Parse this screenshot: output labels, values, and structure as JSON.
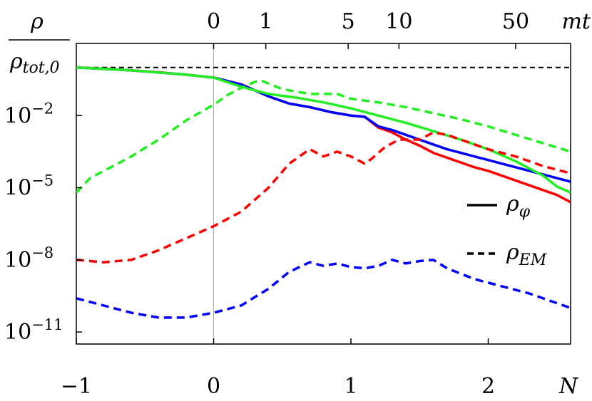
{
  "chart_data": {
    "type": "line",
    "title": "",
    "ylabel_numerator": "ρ",
    "ylabel_denominator": "ρtot,0",
    "xlabel": "N",
    "top_axis_label": "mt",
    "xlim": [
      -1,
      2.6
    ],
    "ylim_log10": [
      -11.5,
      1.0
    ],
    "y_scale": "log",
    "x_ticks": [
      {
        "value": -1,
        "label": "−1"
      },
      {
        "value": 0,
        "label": "0"
      },
      {
        "value": 1,
        "label": "1"
      },
      {
        "value": 2,
        "label": "2"
      }
    ],
    "y_ticks": [
      {
        "value_log10": -2,
        "base": "10",
        "exp": "−2"
      },
      {
        "value_log10": -5,
        "base": "10",
        "exp": "−5"
      },
      {
        "value_log10": -8,
        "base": "10",
        "exp": "−8"
      },
      {
        "value_log10": -11,
        "base": "10",
        "exp": "−11"
      }
    ],
    "top_ticks": [
      {
        "N": 0.0,
        "label": "0"
      },
      {
        "N": 0.38,
        "label": "1"
      },
      {
        "N": 0.98,
        "label": "5"
      },
      {
        "N": 1.35,
        "label": "10"
      },
      {
        "N": 2.2,
        "label": "50"
      }
    ],
    "reference_line": {
      "value_log10": 0,
      "style": "dashed",
      "color": "#000000"
    },
    "vertical_line": {
      "N": 0,
      "color": "#aaaaaa"
    },
    "legend": [
      {
        "label": "ρφ",
        "base": "ρ",
        "sub": "φ",
        "style": "solid"
      },
      {
        "label": "ρEM",
        "base": "ρ",
        "sub": "EM",
        "style": "dashed"
      }
    ],
    "legend_position": "right",
    "series": [
      {
        "color": "#ff0000",
        "style": "solid",
        "x": [
          -1.0,
          -0.8,
          -0.6,
          -0.4,
          -0.2,
          0.0,
          0.2,
          0.4,
          0.55,
          0.7,
          0.85,
          1.0,
          1.1,
          1.2,
          1.3,
          1.4,
          1.5,
          1.6,
          1.7,
          1.8,
          1.9,
          2.0,
          2.1,
          2.2,
          2.3,
          2.4,
          2.5,
          2.6
        ],
        "y_log10": [
          0.0,
          -0.05,
          -0.12,
          -0.2,
          -0.3,
          -0.42,
          -0.7,
          -1.2,
          -1.5,
          -1.65,
          -1.85,
          -2.0,
          -2.05,
          -2.5,
          -2.7,
          -3.0,
          -3.25,
          -3.55,
          -3.75,
          -3.95,
          -4.15,
          -4.3,
          -4.5,
          -4.7,
          -4.9,
          -5.1,
          -5.3,
          -5.6
        ]
      },
      {
        "color": "#0000ff",
        "style": "solid",
        "x": [
          -1.0,
          -0.6,
          -0.2,
          0.0,
          0.2,
          0.4,
          0.55,
          0.7,
          0.85,
          1.0,
          1.1,
          1.2,
          1.3,
          1.4,
          1.5,
          1.6,
          1.7,
          1.8,
          1.9,
          2.0,
          2.1,
          2.2,
          2.3,
          2.4,
          2.5,
          2.6
        ],
        "y_log10": [
          0.0,
          -0.12,
          -0.3,
          -0.42,
          -0.7,
          -1.2,
          -1.5,
          -1.65,
          -1.85,
          -2.0,
          -2.05,
          -2.45,
          -2.6,
          -2.8,
          -3.0,
          -3.2,
          -3.4,
          -3.55,
          -3.7,
          -3.85,
          -4.0,
          -4.15,
          -4.3,
          -4.45,
          -4.6,
          -4.75
        ]
      },
      {
        "color": "#22ee22",
        "style": "solid",
        "x": [
          -1.0,
          -0.6,
          -0.2,
          0.0,
          0.2,
          0.4,
          0.6,
          0.8,
          1.0,
          1.2,
          1.4,
          1.6,
          1.8,
          2.0,
          2.2,
          2.4,
          2.5,
          2.6
        ],
        "y_log10": [
          0.0,
          -0.12,
          -0.3,
          -0.42,
          -0.8,
          -1.1,
          -1.25,
          -1.45,
          -1.7,
          -2.0,
          -2.3,
          -2.65,
          -3.0,
          -3.4,
          -3.9,
          -4.5,
          -4.95,
          -5.2
        ]
      },
      {
        "color": "#ff0000",
        "style": "dashed",
        "x": [
          -1.0,
          -0.8,
          -0.6,
          -0.4,
          -0.2,
          0.0,
          0.2,
          0.4,
          0.55,
          0.7,
          0.8,
          0.9,
          1.0,
          1.1,
          1.15,
          1.25,
          1.35,
          1.5,
          1.6,
          1.7,
          1.8,
          1.9,
          2.0,
          2.2,
          2.4,
          2.6
        ],
        "y_log10": [
          -8.0,
          -8.1,
          -8.0,
          -7.6,
          -7.1,
          -6.6,
          -6.0,
          -5.0,
          -4.0,
          -3.4,
          -3.7,
          -3.5,
          -3.7,
          -4.0,
          -3.8,
          -3.3,
          -3.0,
          -3.0,
          -2.7,
          -2.8,
          -3.0,
          -3.2,
          -3.4,
          -3.7,
          -4.1,
          -4.4
        ]
      },
      {
        "color": "#0000ff",
        "style": "dashed",
        "x": [
          -1.0,
          -0.8,
          -0.6,
          -0.4,
          -0.2,
          0.0,
          0.2,
          0.4,
          0.55,
          0.7,
          0.8,
          0.9,
          1.0,
          1.1,
          1.2,
          1.3,
          1.4,
          1.5,
          1.6,
          1.7,
          1.9,
          2.1,
          2.3,
          2.45,
          2.6
        ],
        "y_log10": [
          -9.6,
          -9.9,
          -10.2,
          -10.4,
          -10.4,
          -10.2,
          -9.9,
          -9.2,
          -8.5,
          -8.1,
          -8.25,
          -8.15,
          -8.3,
          -8.35,
          -8.25,
          -8.0,
          -8.15,
          -8.05,
          -8.0,
          -8.35,
          -8.8,
          -9.1,
          -9.4,
          -9.7,
          -10.0
        ]
      },
      {
        "color": "#22ee22",
        "style": "dashed",
        "x": [
          -1.0,
          -0.9,
          -0.8,
          -0.6,
          -0.4,
          -0.2,
          0.0,
          0.1,
          0.2,
          0.3,
          0.35,
          0.5,
          0.7,
          0.9,
          1.0,
          1.2,
          1.4,
          1.6,
          1.8,
          2.0,
          2.2,
          2.4,
          2.6
        ],
        "y_log10": [
          -5.2,
          -4.6,
          -4.3,
          -3.7,
          -3.0,
          -2.2,
          -1.55,
          -1.15,
          -0.85,
          -0.6,
          -0.55,
          -0.9,
          -1.1,
          -1.1,
          -1.3,
          -1.45,
          -1.65,
          -1.9,
          -2.15,
          -2.45,
          -2.8,
          -3.15,
          -3.5
        ]
      }
    ]
  }
}
